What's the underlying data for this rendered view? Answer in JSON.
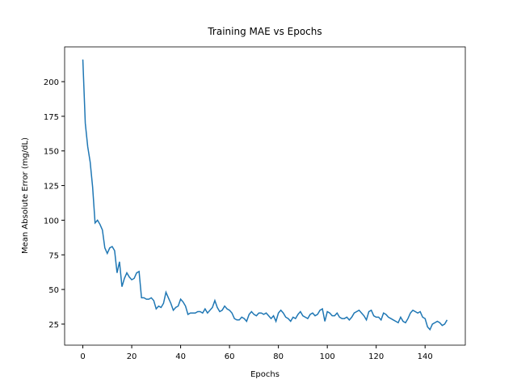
{
  "chart_data": {
    "type": "line",
    "title": "Training MAE vs Epochs",
    "x_label": "Epochs",
    "y_label": "Mean Absolute Error (mg/dL)",
    "x": [
      0,
      1,
      2,
      3,
      4,
      5,
      6,
      7,
      8,
      9,
      10,
      11,
      12,
      13,
      14,
      15,
      16,
      17,
      18,
      19,
      20,
      21,
      22,
      23,
      24,
      25,
      26,
      27,
      28,
      29,
      30,
      31,
      32,
      33,
      34,
      35,
      36,
      37,
      38,
      39,
      40,
      41,
      42,
      43,
      44,
      45,
      46,
      47,
      48,
      49,
      50,
      51,
      52,
      53,
      54,
      55,
      56,
      57,
      58,
      59,
      60,
      61,
      62,
      63,
      64,
      65,
      66,
      67,
      68,
      69,
      70,
      71,
      72,
      73,
      74,
      75,
      76,
      77,
      78,
      79,
      80,
      81,
      82,
      83,
      84,
      85,
      86,
      87,
      88,
      89,
      90,
      91,
      92,
      93,
      94,
      95,
      96,
      97,
      98,
      99,
      100,
      101,
      102,
      103,
      104,
      105,
      106,
      107,
      108,
      109,
      110,
      111,
      112,
      113,
      114,
      115,
      116,
      117,
      118,
      119,
      120,
      121,
      122,
      123,
      124,
      125,
      126,
      127,
      128,
      129,
      130,
      131,
      132,
      133,
      134,
      135,
      136,
      137,
      138,
      139,
      140,
      141,
      142,
      143,
      144,
      145,
      146,
      147,
      148,
      149
    ],
    "series": [
      {
        "name": "MAE",
        "color": "#1f77b4",
        "values": [
          216,
          170,
          153,
          142,
          124,
          98,
          100,
          97,
          93,
          80,
          76,
          80,
          81,
          78,
          62,
          70,
          52,
          58,
          62,
          59,
          57,
          58,
          62,
          63,
          44,
          44,
          43,
          43,
          44,
          42,
          36,
          38,
          37,
          40,
          48,
          44,
          40,
          35,
          37,
          38,
          43,
          41,
          38,
          32,
          33,
          33,
          33,
          34,
          34,
          33,
          36,
          33,
          35,
          37,
          42,
          37,
          34,
          35,
          38,
          36,
          35,
          33,
          29,
          28,
          28,
          30,
          29,
          27,
          32,
          34,
          32,
          31,
          33,
          33,
          32,
          33,
          31,
          29,
          31,
          27,
          33,
          35,
          33,
          30,
          29,
          27,
          30,
          29,
          32,
          34,
          31,
          30,
          29,
          32,
          33,
          31,
          32,
          35,
          36,
          27,
          34,
          33,
          31,
          31,
          33,
          30,
          29,
          29,
          30,
          28,
          30,
          33,
          34,
          35,
          33,
          31,
          28,
          34,
          35,
          31,
          30,
          30,
          28,
          33,
          32,
          30,
          29,
          28,
          27,
          26,
          30,
          27,
          26,
          29,
          33,
          35,
          34,
          33,
          34,
          30,
          29,
          23,
          21,
          25,
          26,
          27,
          26,
          24,
          25,
          28
        ]
      }
    ],
    "xlim": [
      -7.45,
      156.45
    ],
    "ylim": [
      9.8,
      225.1
    ],
    "xticks": [
      0,
      20,
      40,
      60,
      80,
      100,
      120,
      140
    ],
    "yticks": [
      25,
      50,
      75,
      100,
      125,
      150,
      175,
      200
    ]
  }
}
